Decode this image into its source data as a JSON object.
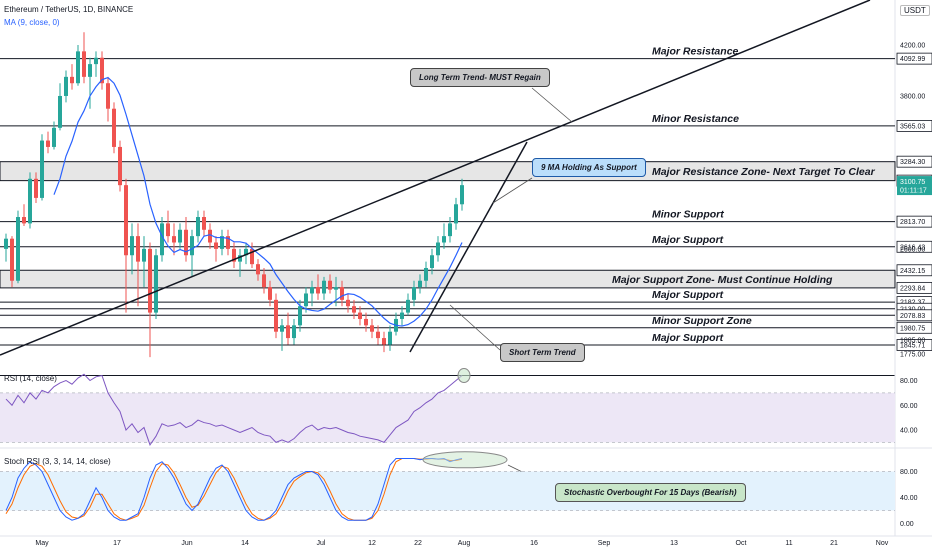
{
  "header": {
    "symbol": "Ethereum / TetherUS, 1D, BINANCE",
    "ma_label": "MA (9, close, 0)",
    "currency": "USDT",
    "rsi_label": "RSI (14, close)",
    "stoch_label": "Stoch RSI (3, 3, 14, 14, close)"
  },
  "chart_data": {
    "type": "candlestick",
    "ylim": [
      1700,
      4300
    ],
    "x_ticks": [
      "May",
      "17",
      "Jun",
      "14",
      "Jul",
      "12",
      "22",
      "Aug",
      "16",
      "Sep",
      "13",
      "Oct",
      "11",
      "21",
      "Nov"
    ],
    "price_ticks": [
      "4200.00",
      "3800.00",
      "2600.00",
      "1885.00",
      "1775.00"
    ],
    "levels": [
      {
        "label": "Major Resistance",
        "value": 4092.99,
        "tag": "4092.99"
      },
      {
        "label": "Minor Resistance",
        "value": 3565.03,
        "tag": "3565.03"
      },
      {
        "label": "Major Resistance Zone- Next Target To Clear",
        "zone_top": 3284.3,
        "zone_bottom": 3135.61,
        "tags": [
          "3284.30",
          "3135.61"
        ]
      },
      {
        "label": "Minor Support",
        "value": 2813.7,
        "tag": "2813.70"
      },
      {
        "label": "Major Support",
        "value": 2616.43,
        "tag": "2616.43"
      },
      {
        "label": "Major Support Zone- Must Continue Holding",
        "zone_top": 2432.15,
        "zone_bottom": 2293.84,
        "tags": [
          "2432.15",
          "2293.84"
        ]
      },
      {
        "label": "Major Support",
        "value": 2182.37,
        "tag": "2182.37"
      },
      {
        "label": "",
        "value": 2130.0,
        "tag": "2130.00"
      },
      {
        "label": "",
        "value": 2078.83,
        "tag": "2078.83"
      },
      {
        "label": "Minor Support Zone",
        "value": 1980.75,
        "tag": "1980.75"
      },
      {
        "label": "Major Support",
        "value": 1845.71,
        "tag": "1845.71"
      }
    ],
    "last_price": {
      "value": "3100.75",
      "time": "01:11:17"
    },
    "candles": [
      [
        2600,
        2720,
        2500,
        2680
      ],
      [
        2680,
        2700,
        2300,
        2350
      ],
      [
        2350,
        2900,
        2330,
        2850
      ],
      [
        2850,
        2950,
        2780,
        2800
      ],
      [
        2800,
        3200,
        2760,
        3150
      ],
      [
        3150,
        3200,
        2960,
        3000
      ],
      [
        3000,
        3500,
        2980,
        3450
      ],
      [
        3450,
        3520,
        3350,
        3400
      ],
      [
        3400,
        3600,
        3380,
        3550
      ],
      [
        3550,
        3900,
        3530,
        3800
      ],
      [
        3800,
        4000,
        3750,
        3950
      ],
      [
        3950,
        4050,
        3850,
        3900
      ],
      [
        3900,
        4200,
        3880,
        4150
      ],
      [
        4150,
        4300,
        3900,
        3950
      ],
      [
        3950,
        4100,
        3700,
        4050
      ],
      [
        4050,
        4150,
        3950,
        4100
      ],
      [
        4100,
        4150,
        3850,
        3900
      ],
      [
        3900,
        3950,
        3600,
        3700
      ],
      [
        3700,
        3750,
        3350,
        3400
      ],
      [
        3400,
        3450,
        3050,
        3100
      ],
      [
        3100,
        3150,
        2100,
        2550
      ],
      [
        2550,
        2800,
        2400,
        2700
      ],
      [
        2700,
        2800,
        2150,
        2500
      ],
      [
        2500,
        2700,
        2300,
        2600
      ],
      [
        2600,
        2650,
        1750,
        2100
      ],
      [
        2100,
        2600,
        2050,
        2550
      ],
      [
        2550,
        2850,
        2500,
        2800
      ],
      [
        2800,
        2900,
        2650,
        2700
      ],
      [
        2700,
        2800,
        2550,
        2650
      ],
      [
        2650,
        2800,
        2600,
        2750
      ],
      [
        2750,
        2850,
        2500,
        2550
      ],
      [
        2550,
        2750,
        2380,
        2700
      ],
      [
        2700,
        2900,
        2650,
        2850
      ],
      [
        2850,
        2900,
        2700,
        2750
      ],
      [
        2750,
        2800,
        2600,
        2650
      ],
      [
        2650,
        2700,
        2500,
        2600
      ],
      [
        2600,
        2750,
        2550,
        2700
      ],
      [
        2700,
        2750,
        2550,
        2600
      ],
      [
        2600,
        2650,
        2450,
        2500
      ],
      [
        2500,
        2600,
        2380,
        2550
      ],
      [
        2550,
        2650,
        2480,
        2600
      ],
      [
        2600,
        2650,
        2450,
        2480
      ],
      [
        2480,
        2520,
        2350,
        2400
      ],
      [
        2400,
        2450,
        2250,
        2300
      ],
      [
        2300,
        2350,
        2150,
        2200
      ],
      [
        2200,
        2250,
        1900,
        1950
      ],
      [
        1950,
        2050,
        1800,
        2000
      ],
      [
        2000,
        2100,
        1850,
        1900
      ],
      [
        1900,
        2050,
        1850,
        2000
      ],
      [
        2000,
        2200,
        1950,
        2150
      ],
      [
        2150,
        2300,
        2100,
        2250
      ],
      [
        2250,
        2350,
        2150,
        2300
      ],
      [
        2300,
        2400,
        2200,
        2250
      ],
      [
        2250,
        2380,
        2200,
        2350
      ],
      [
        2350,
        2400,
        2250,
        2280
      ],
      [
        2280,
        2380,
        2150,
        2300
      ],
      [
        2300,
        2350,
        2150,
        2200
      ],
      [
        2200,
        2250,
        2100,
        2150
      ],
      [
        2150,
        2200,
        2050,
        2100
      ],
      [
        2100,
        2150,
        2000,
        2050
      ],
      [
        2050,
        2100,
        1950,
        2000
      ],
      [
        2000,
        2050,
        1900,
        1950
      ],
      [
        1950,
        2000,
        1850,
        1900
      ],
      [
        1900,
        1950,
        1790,
        1850
      ],
      [
        1850,
        2000,
        1800,
        1950
      ],
      [
        1950,
        2100,
        1920,
        2050
      ],
      [
        2050,
        2150,
        2000,
        2100
      ],
      [
        2100,
        2250,
        2080,
        2200
      ],
      [
        2200,
        2350,
        2150,
        2300
      ],
      [
        2300,
        2400,
        2250,
        2350
      ],
      [
        2350,
        2500,
        2300,
        2450
      ],
      [
        2450,
        2600,
        2400,
        2550
      ],
      [
        2550,
        2700,
        2500,
        2650
      ],
      [
        2650,
        2800,
        2600,
        2700
      ],
      [
        2700,
        2850,
        2650,
        2800
      ],
      [
        2800,
        3000,
        2750,
        2950
      ],
      [
        2950,
        3150,
        2900,
        3100
      ]
    ],
    "rsi": {
      "ylim": [
        0,
        100
      ],
      "ticks": [
        "80.00",
        "60.00",
        "40.00"
      ],
      "band": [
        30,
        70
      ],
      "values": [
        65,
        60,
        68,
        62,
        70,
        65,
        72,
        70,
        75,
        78,
        80,
        77,
        82,
        85,
        80,
        83,
        84,
        70,
        62,
        55,
        40,
        45,
        38,
        42,
        28,
        35,
        45,
        43,
        44,
        46,
        42,
        44,
        48,
        46,
        45,
        43,
        44,
        42,
        40,
        38,
        40,
        42,
        38,
        36,
        35,
        30,
        32,
        30,
        33,
        38,
        42,
        44,
        40,
        42,
        41,
        42,
        40,
        38,
        37,
        35,
        34,
        33,
        32,
        30,
        36,
        42,
        45,
        48,
        55,
        58,
        62,
        65,
        70,
        72,
        76,
        80,
        84
      ]
    },
    "stoch_rsi": {
      "ylim": [
        -5,
        105
      ],
      "ticks": [
        "80.00",
        "40.00",
        "0.00"
      ],
      "band": [
        20,
        80
      ],
      "k": [
        20,
        40,
        70,
        85,
        95,
        90,
        80,
        60,
        40,
        20,
        10,
        5,
        8,
        15,
        35,
        55,
        40,
        20,
        10,
        5,
        5,
        10,
        15,
        40,
        70,
        90,
        95,
        85,
        70,
        50,
        30,
        20,
        30,
        50,
        70,
        85,
        90,
        80,
        60,
        40,
        20,
        10,
        5,
        5,
        10,
        20,
        40,
        60,
        70,
        75,
        80,
        80,
        75,
        60,
        40,
        20,
        10,
        5,
        5,
        5,
        5,
        10,
        30,
        60,
        90,
        100,
        100,
        100,
        100,
        98,
        100,
        100,
        99,
        100,
        95,
        98,
        100
      ],
      "d": [
        15,
        30,
        55,
        75,
        88,
        92,
        88,
        75,
        55,
        35,
        18,
        10,
        8,
        12,
        25,
        45,
        45,
        30,
        15,
        8,
        5,
        8,
        12,
        28,
        55,
        80,
        92,
        90,
        78,
        60,
        40,
        25,
        28,
        42,
        60,
        78,
        88,
        85,
        70,
        50,
        30,
        15,
        8,
        5,
        8,
        15,
        30,
        50,
        65,
        72,
        78,
        80,
        78,
        68,
        50,
        30,
        15,
        8,
        5,
        5,
        5,
        8,
        20,
        45,
        75,
        95,
        100,
        100,
        100,
        99,
        99,
        100,
        99,
        99,
        97,
        97,
        99
      ]
    },
    "ma_period": 9
  },
  "annotations": {
    "long_term": "Long Term Trend- MUST Regain",
    "ma_support": "9 MA Holding As Support",
    "short_term": "Short Term Trend",
    "stoch_overbought": "Stochastic Overbought For 15 Days (Bearish)"
  },
  "colors": {
    "up": "#26a69a",
    "down": "#ef5350",
    "ma": "#2962ff",
    "rsi": "#7e57c2",
    "stoch_k": "#2962ff",
    "stoch_d": "#ff6d00",
    "last_price_bg": "#26a69a"
  }
}
